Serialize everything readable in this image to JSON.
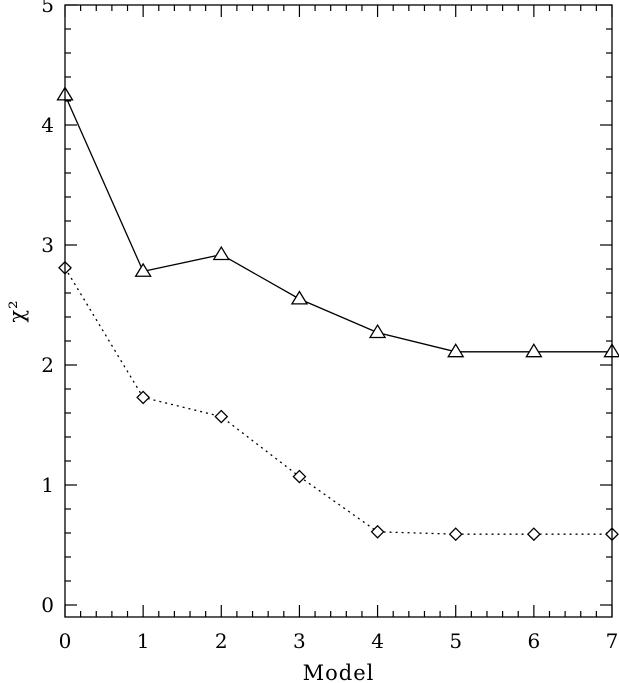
{
  "chart_data": {
    "type": "line",
    "title": "",
    "xlabel": "Model",
    "ylabel": "χ²",
    "xlim": [
      0,
      7
    ],
    "ylim": [
      -0.1,
      5
    ],
    "x_ticks": [
      "0",
      "1",
      "2",
      "3",
      "4",
      "5",
      "6",
      "7"
    ],
    "y_ticks": [
      "0",
      "1",
      "2",
      "3",
      "4",
      "5"
    ],
    "grid": false,
    "x": [
      0,
      1,
      2,
      3,
      4,
      5,
      6,
      7
    ],
    "series": [
      {
        "marker": "triangle",
        "line_style": "solid",
        "values": [
          4.25,
          2.78,
          2.92,
          2.55,
          2.27,
          2.11,
          2.11,
          2.11
        ]
      },
      {
        "marker": "diamond",
        "line_style": "dotted",
        "values": [
          2.81,
          1.73,
          1.57,
          1.07,
          0.61,
          0.59,
          0.59,
          0.59
        ]
      }
    ]
  }
}
